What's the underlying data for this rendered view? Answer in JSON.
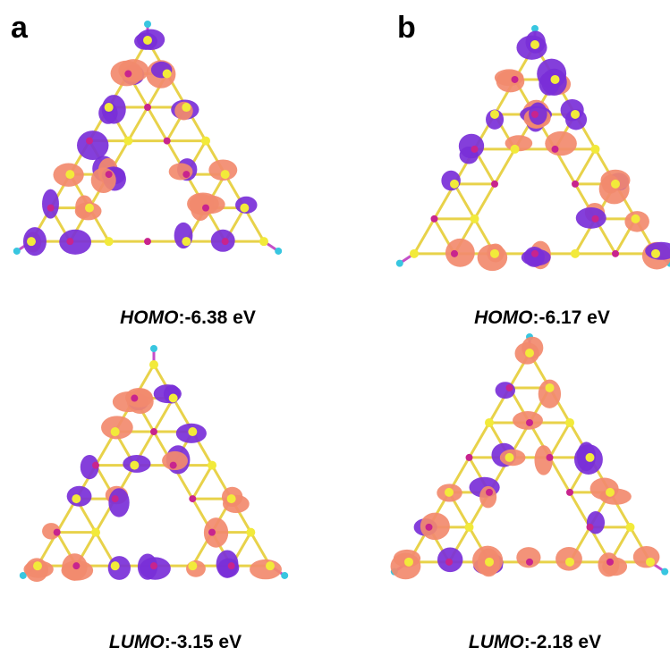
{
  "panels": [
    {
      "label": "a",
      "orbitals": [
        {
          "name": "HOMO",
          "energy": ":-6.38 eV"
        },
        {
          "name": "LUMO",
          "energy": ":-3.15 eV"
        }
      ]
    },
    {
      "label": "b",
      "orbitals": [
        {
          "name": "HOMO",
          "energy": ":-6.17 eV"
        },
        {
          "name": "LUMO",
          "energy": ":-2.18 eV"
        }
      ]
    }
  ]
}
